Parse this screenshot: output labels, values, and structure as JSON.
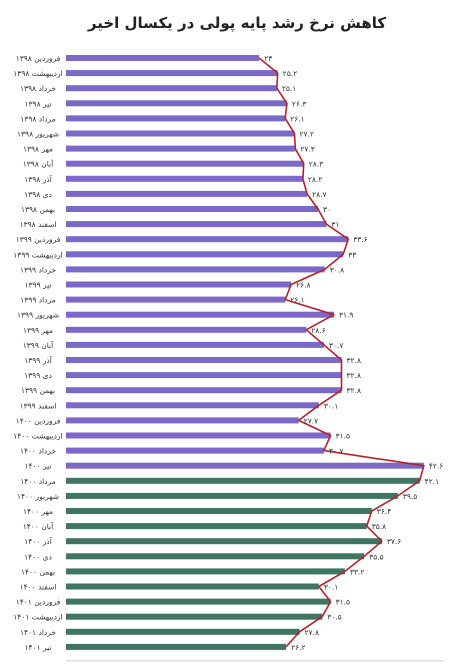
{
  "chart_data": {
    "type": "bar",
    "orientation": "horizontal",
    "title": "کاهش نرخ رشد پایه پولی در یکسال اخیر",
    "xlim": [
      0,
      45
    ],
    "xticks": [
      0,
      5,
      10,
      15,
      20,
      25,
      30,
      35,
      40,
      45
    ],
    "xtick_labels": [
      "۰",
      "۵",
      "۱۰",
      "۱۵",
      "۲۰",
      "۲۵",
      "۳۰",
      "۳۵",
      "۴۰",
      "۴۵"
    ],
    "grid": false,
    "legend": "none",
    "colors": {
      "bar_before": "#7b68c9",
      "bar_after": "#3f7561",
      "line": "#b3232c"
    },
    "categories": [
      "فروردین ۱۳۹۸",
      "اردیبهشت ۱۳۹۸",
      "خرداد ۱۳۹۸",
      "تیر ۱۳۹۸",
      "مرداد ۱۳۹۸",
      "شهریور ۱۳۹۸",
      "مهر ۱۳۹۸",
      "آبان ۱۳۹۸",
      "آذر ۱۳۹۸",
      "دی ۱۳۹۸",
      "بهمن ۱۳۹۸",
      "اسفند ۱۳۹۸",
      "فروردین ۱۳۹۹",
      "اردیبهشت ۱۳۹۹",
      "خرداد ۱۳۹۹",
      "تیر ۱۳۹۹",
      "مرداد ۱۳۹۹",
      "شهریور ۱۳۹۹",
      "مهر ۱۳۹۹",
      "آبان ۱۳۹۹",
      "آذر ۱۳۹۹",
      "دی ۱۳۹۹",
      "بهمن ۱۳۹۹",
      "اسفند ۱۳۹۹",
      "فروردین ۱۴۰۰",
      "اردیبهشت ۱۴۰۰",
      "خرداد ۱۴۰۰",
      "تیر ۱۴۰۰",
      "مرداد ۱۴۰۰",
      "شهریور ۱۴۰۰",
      "مهر ۱۴۰۰",
      "آبان ۱۴۰۰",
      "آذر ۱۴۰۰",
      "دی ۱۴۰۰",
      "بهمن ۱۴۰۰",
      "اسفند ۱۴۰۰",
      "فروردین ۱۴۰۱",
      "اردیبهشت ۱۴۰۱",
      "خرداد ۱۴۰۱",
      "تیر ۱۴۰۱"
    ],
    "values": [
      23,
      25.2,
      25.1,
      26.3,
      26.1,
      27.2,
      27.3,
      28.3,
      28.2,
      28.7,
      30,
      31,
      33.6,
      33,
      30.8,
      26.8,
      26.1,
      31.9,
      28.6,
      30.7,
      32.8,
      32.8,
      32.8,
      30.1,
      27.7,
      31.5,
      30.7,
      42.6,
      42.1,
      39.5,
      36.4,
      35.8,
      37.6,
      35.5,
      33.2,
      30.1,
      31.5,
      30.5,
      27.8,
      26.2
    ],
    "value_labels": [
      "۲۳",
      "۲۵.۲",
      "۲۵.۱",
      "۲۶.۳",
      "۲۶.۱",
      "۲۷.۲",
      "۲۷.۳",
      "۲۸.۳",
      "۲۸.۲",
      "۲۸.۷",
      "۳۰",
      "۳۱",
      "۳۳.۶",
      "۳۳",
      "۳۰.۸",
      "۲۶.۸",
      "۲۶.۱",
      "۳۱.۹",
      "۲۸.۶",
      "۳۰.۷",
      "۳۲.۸",
      "۳۲.۸",
      "۳۲.۸",
      "۳۰.۱",
      "۲۷.۷",
      "۳۱.۵",
      "۳۰.۷",
      "۴۲.۶",
      "۴۲.۱",
      "۳۹.۵",
      "۳۶.۴",
      "۳۵.۸",
      "۳۷.۶",
      "۳۵.۵",
      "۳۳.۲",
      "۳۰.۱",
      "۳۱.۵",
      "۳۰.۵",
      "۲۷.۸",
      "۲۶.۲"
    ],
    "color_split_index": 28
  }
}
